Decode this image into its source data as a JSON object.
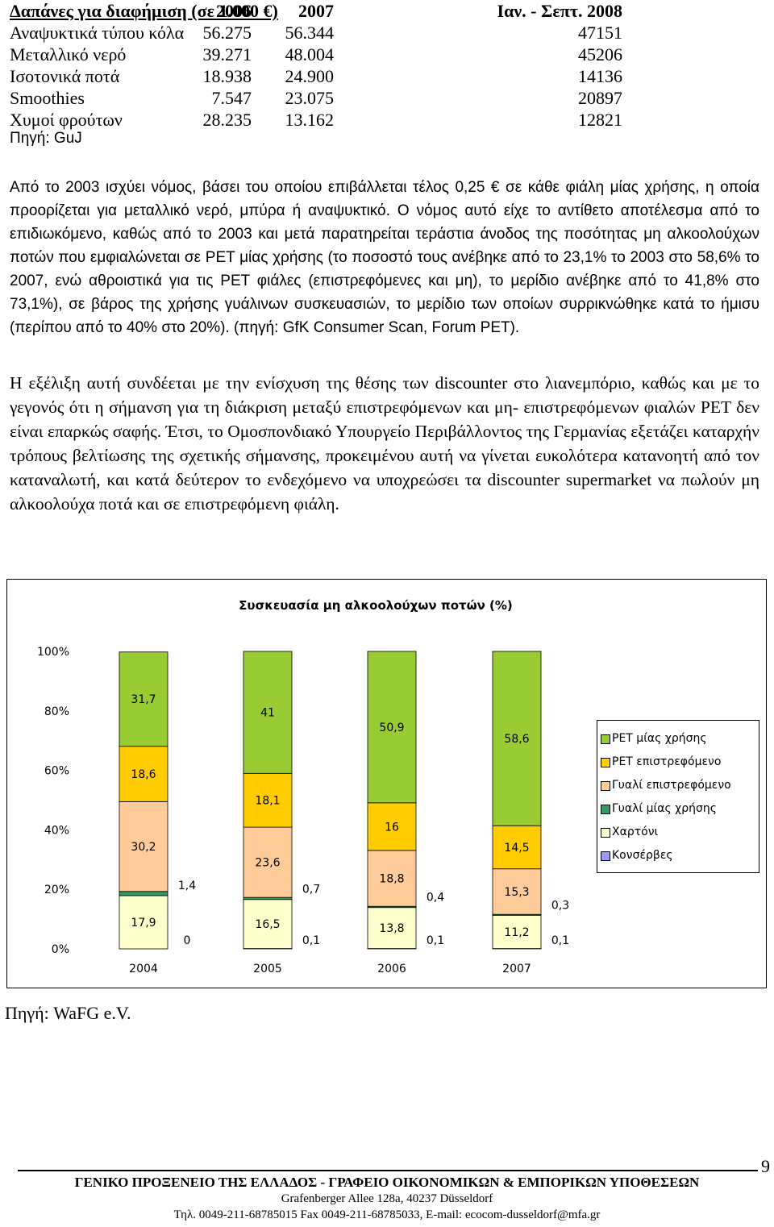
{
  "table": {
    "headers": [
      "Δαπάνες για διαφήμιση (σε 1.000 €)",
      "2006",
      "2007",
      "Ιαν. - Σεπτ. 2008"
    ],
    "rows": [
      [
        "Αναψυκτικά τύπου κόλα",
        "56.275",
        "56.344",
        "47151"
      ],
      [
        "Μεταλλικό νερό",
        "39.271",
        "48.004",
        "45206"
      ],
      [
        "Ισοτονικά ποτά",
        "18.938",
        "24.900",
        "14136"
      ],
      [
        "Smoothies",
        "7.547",
        "23.075",
        "20897"
      ],
      [
        "Χυμοί φρούτων",
        "28.235",
        "13.162",
        "12821"
      ]
    ],
    "source": "Πηγή: GuJ"
  },
  "paragraphs": {
    "p1": "Από το 2003 ισχύει νόμος, βάσει του οποίου επιβάλλεται τέλος 0,25 € σε κάθε φιάλη μίας χρήσης, η οποία προορίζεται για μεταλλικό νερό, μπύρα ή αναψυκτικό. Ο νόμος αυτό είχε το αντίθετο αποτέλεσμα από το επιδιωκόμενο, καθώς από το 2003 και μετά παρατηρείται τεράστια άνοδος της ποσότητας μη αλκοολούχων ποτών που εμφιαλώνεται σε PET μίας χρήσης (το ποσοστό τους ανέβηκε από το 23,1% το 2003 στο 58,6% το 2007, ενώ αθροιστικά για τις PET φιάλες (επιστρεφόμενες και μη), το μερίδιο ανέβηκε από το 41,8% στο 73,1%), σε βάρος της χρήσης γυάλινων συσκευασιών, το μερίδιο των οποίων συρρικνώθηκε κατά το ήμισυ (περίπου από το 40% στο 20%). (πηγή: GfK Consumer Scan, Forum PET).",
    "p2": "Η εξέλιξη αυτή συνδέεται με την ενίσχυση της θέσης των discounter στο λιανεμπόριο, καθώς και με το γεγονός ότι η σήμανση για τη διάκριση μεταξύ επιστρεφόμενων και μη- επιστρεφόμενων φιαλών PET δεν είναι επαρκώς σαφής. Έτσι, το Ομοσπονδιακό Υπουργείο Περιβάλλοντος της Γερμανίας εξετάζει καταρχήν τρόπους βελτίωσης της σχετικής σήμανσης, προκειμένου αυτή να γίνεται ευκολότερα κατανοητή από τον καταναλωτή, και κατά δεύτερον το ενδεχόμενο να υποχρεώσει τα discounter supermarket να πωλούν μη αλκοολούχα ποτά και σε επιστρεφόμενη φιάλη."
  },
  "chart_data": {
    "type": "bar",
    "stacked": true,
    "title": "Συσκευασία μη αλκοολούχων ποτών (%)",
    "categories": [
      "2004",
      "2005",
      "2006",
      "2007"
    ],
    "ylim": [
      0,
      100
    ],
    "yticks": [
      "0%",
      "20%",
      "40%",
      "60%",
      "80%",
      "100%"
    ],
    "grid": false,
    "legend_position": "right",
    "series": [
      {
        "name": "Κονσέρβες",
        "color": "#9999FF",
        "values": [
          0,
          0.1,
          0.1,
          0.1
        ],
        "labels": [
          "0",
          "0,1",
          "0,1",
          "0,1"
        ]
      },
      {
        "name": "Χαρτόνι",
        "color": "#FFFFCC",
        "values": [
          17.9,
          16.5,
          13.8,
          11.2
        ],
        "labels": [
          "17,9",
          "16,5",
          "13,8",
          "11,2"
        ]
      },
      {
        "name": "Γυαλί μίας χρήσης",
        "color": "#339966",
        "values": [
          1.4,
          0.7,
          0.4,
          0.3
        ],
        "labels": [
          "1,4",
          "0,7",
          "0,4",
          "0,3"
        ]
      },
      {
        "name": "Γυαλί επιστρεφόμενο",
        "color": "#FFCC99",
        "values": [
          30.2,
          23.6,
          18.8,
          15.3
        ],
        "labels": [
          "30,2",
          "23,6",
          "18,8",
          "15,3"
        ]
      },
      {
        "name": "PET επιστρεφόμενο",
        "color": "#FFCC00",
        "values": [
          18.6,
          18.1,
          16,
          14.5
        ],
        "labels": [
          "18,6",
          "18,1",
          "16",
          "14,5"
        ]
      },
      {
        "name": "PET μίας χρήσης",
        "color": "#99CC33",
        "values": [
          31.7,
          41,
          50.9,
          58.6
        ],
        "labels": [
          "31,7",
          "41",
          "50,9",
          "58,6"
        ]
      }
    ],
    "legend_order": [
      "PET μίας χρήσης",
      "PET επιστρεφόμενο",
      "Γυαλί επιστρεφόμενο",
      "Γυαλί μίας χρήσης",
      "Χαρτόνι",
      "Κονσέρβες"
    ]
  },
  "chart_source": "Πηγή: WaFG e.V.",
  "page_number": "9",
  "footer": {
    "line1": "ΓΕΝΙΚΟ ΠΡΟΞΕΝΕΙΟ ΤΗΣ ΕΛΛΑΔΟΣ - ΓΡΑΦΕΙΟ ΟΙΚΟΝΟΜΙΚΩΝ & ΕΜΠΟΡΙΚΩΝ ΥΠΟΘΕΣΕΩΝ",
    "line2": "Grafenberger Allee 128a, 40237 Düsseldorf",
    "line3": "Τηλ. 0049-211-68785015 Fax 0049-211-68785033, E-mail: ecocom-dusseldorf@mfa.gr"
  }
}
